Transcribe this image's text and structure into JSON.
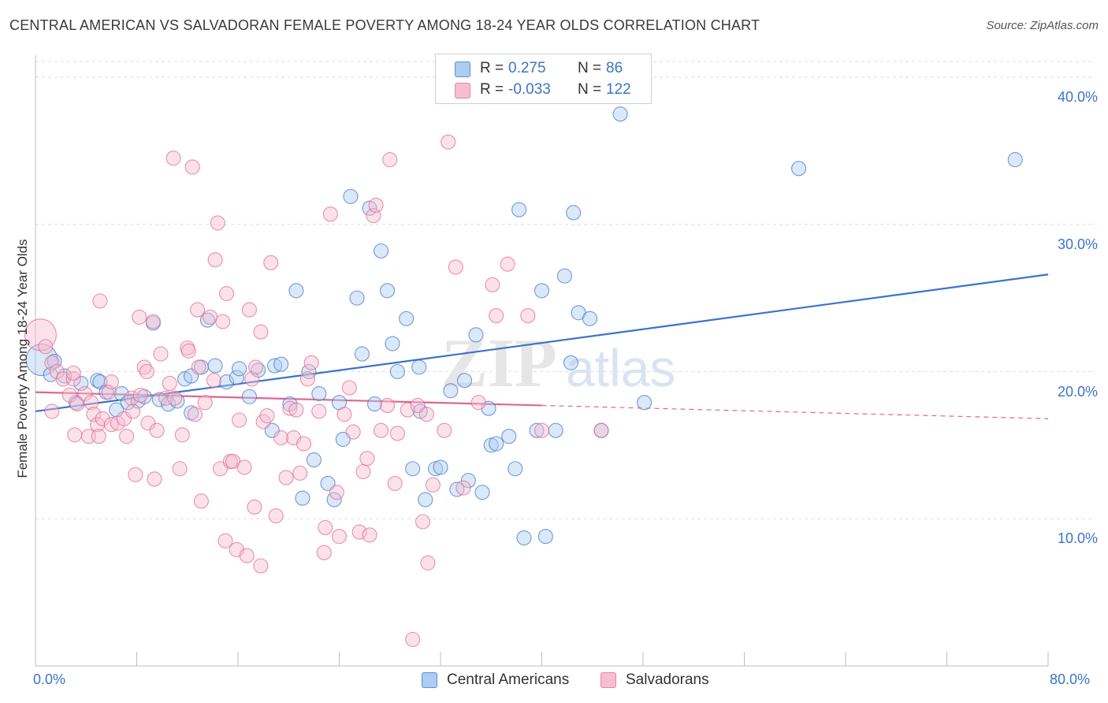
{
  "title": "CENTRAL AMERICAN VS SALVADORAN FEMALE POVERTY AMONG 18-24 YEAR OLDS CORRELATION CHART",
  "source": "Source: ZipAtlas.com",
  "watermark": {
    "zip": "ZIP",
    "atlas": "atlas"
  },
  "legend": {
    "r_label": "R =",
    "n_label": "N =",
    "rows": [
      {
        "r": "0.275",
        "n": "86",
        "fill": "#aecbf0",
        "stroke": "#5b8fd6"
      },
      {
        "r": "-0.033",
        "n": "122",
        "fill": "#f7bdd0",
        "stroke": "#e586a6"
      }
    ]
  },
  "chart_data": {
    "type": "scatter",
    "xlabel": "",
    "ylabel": "Female Poverty Among 18-24 Year Olds",
    "xlim": [
      0,
      80
    ],
    "ylim": [
      0,
      41.5
    ],
    "x_tick_labels": [
      "0.0%",
      "80.0%"
    ],
    "y_ticks": [
      10,
      20,
      30,
      40
    ],
    "y_tick_labels": [
      "10.0%",
      "20.0%",
      "30.0%",
      "40.0%"
    ],
    "grid": true,
    "series": [
      {
        "name": "Central Americans",
        "color": "#3b74c9",
        "fill": "#aecbf0",
        "trend": {
          "x0": 0,
          "y0": 17.3,
          "x1": 80,
          "y1": 26.6,
          "dashed_from": null
        },
        "points": [
          [
            0.5,
            20.8
          ],
          [
            1.5,
            20.7
          ],
          [
            1.2,
            19.8
          ],
          [
            2.3,
            19.7
          ],
          [
            3.2,
            17.9
          ],
          [
            3.6,
            19.2
          ],
          [
            4.9,
            19.4
          ],
          [
            5.1,
            19.3
          ],
          [
            5.6,
            18.6
          ],
          [
            6.4,
            17.4
          ],
          [
            6.8,
            18.5
          ],
          [
            7.3,
            17.9
          ],
          [
            8.1,
            18.0
          ],
          [
            8.6,
            18.3
          ],
          [
            9.3,
            23.3
          ],
          [
            9.8,
            18.1
          ],
          [
            10.5,
            17.8
          ],
          [
            11.2,
            18.0
          ],
          [
            11.8,
            19.5
          ],
          [
            12.3,
            17.2
          ],
          [
            12.3,
            19.7
          ],
          [
            13.1,
            20.3
          ],
          [
            13.6,
            23.5
          ],
          [
            14.2,
            20.4
          ],
          [
            15.1,
            19.3
          ],
          [
            15.9,
            19.6
          ],
          [
            16.1,
            20.2
          ],
          [
            16.9,
            18.3
          ],
          [
            17.6,
            20.1
          ],
          [
            18.7,
            16.0
          ],
          [
            18.9,
            20.4
          ],
          [
            19.4,
            20.5
          ],
          [
            20.1,
            17.8
          ],
          [
            20.6,
            25.5
          ],
          [
            21.1,
            11.4
          ],
          [
            21.6,
            20.0
          ],
          [
            22.0,
            14.0
          ],
          [
            22.4,
            18.5
          ],
          [
            23.1,
            12.4
          ],
          [
            23.6,
            11.3
          ],
          [
            24.0,
            17.9
          ],
          [
            24.3,
            15.4
          ],
          [
            24.9,
            31.9
          ],
          [
            25.4,
            25.0
          ],
          [
            25.8,
            21.2
          ],
          [
            26.4,
            31.1
          ],
          [
            26.8,
            17.8
          ],
          [
            27.3,
            28.2
          ],
          [
            27.8,
            25.5
          ],
          [
            28.2,
            21.9
          ],
          [
            28.6,
            20.0
          ],
          [
            29.3,
            23.6
          ],
          [
            29.8,
            13.4
          ],
          [
            30.3,
            20.3
          ],
          [
            30.4,
            17.3
          ],
          [
            30.8,
            11.3
          ],
          [
            31.6,
            13.4
          ],
          [
            32.0,
            13.5
          ],
          [
            32.8,
            18.7
          ],
          [
            33.3,
            12.0
          ],
          [
            33.9,
            19.4
          ],
          [
            34.2,
            12.6
          ],
          [
            34.8,
            22.5
          ],
          [
            35.3,
            11.8
          ],
          [
            35.8,
            17.5
          ],
          [
            36.0,
            15.0
          ],
          [
            36.4,
            15.1
          ],
          [
            37.4,
            15.6
          ],
          [
            37.9,
            13.4
          ],
          [
            38.2,
            31.0
          ],
          [
            38.6,
            8.7
          ],
          [
            39.6,
            16.0
          ],
          [
            40.0,
            25.5
          ],
          [
            40.3,
            8.8
          ],
          [
            41.1,
            16.0
          ],
          [
            41.8,
            26.5
          ],
          [
            42.3,
            20.6
          ],
          [
            42.5,
            30.8
          ],
          [
            42.9,
            24.0
          ],
          [
            43.8,
            23.6
          ],
          [
            44.7,
            16.0
          ],
          [
            45.6,
            40.0
          ],
          [
            46.2,
            37.5
          ],
          [
            48.1,
            17.9
          ],
          [
            60.3,
            33.8
          ],
          [
            77.4,
            34.4
          ]
        ]
      },
      {
        "name": "Salvadorans",
        "color": "#e0668f",
        "fill": "#f7bdd0",
        "trend": {
          "x0": 0,
          "y0": 18.6,
          "x1": 80,
          "y1": 16.8,
          "dashed_from": 40
        },
        "points": [
          [
            0.4,
            22.5
          ],
          [
            0.8,
            21.7
          ],
          [
            1.3,
            20.6
          ],
          [
            1.3,
            17.3
          ],
          [
            1.7,
            20.0
          ],
          [
            2.2,
            19.5
          ],
          [
            2.7,
            18.4
          ],
          [
            3.0,
            19.5
          ],
          [
            3.0,
            19.9
          ],
          [
            3.1,
            15.7
          ],
          [
            3.3,
            17.8
          ],
          [
            3.9,
            18.5
          ],
          [
            4.2,
            15.6
          ],
          [
            4.4,
            17.9
          ],
          [
            4.6,
            17.1
          ],
          [
            4.9,
            16.4
          ],
          [
            5.0,
            15.6
          ],
          [
            5.1,
            24.8
          ],
          [
            5.3,
            16.8
          ],
          [
            5.8,
            18.6
          ],
          [
            6.0,
            16.4
          ],
          [
            6.0,
            19.3
          ],
          [
            6.5,
            16.5
          ],
          [
            7.0,
            16.8
          ],
          [
            7.2,
            15.6
          ],
          [
            7.6,
            18.2
          ],
          [
            7.7,
            17.3
          ],
          [
            7.9,
            13.0
          ],
          [
            8.2,
            23.7
          ],
          [
            8.3,
            18.4
          ],
          [
            8.6,
            20.3
          ],
          [
            8.8,
            20.0
          ],
          [
            8.9,
            16.5
          ],
          [
            9.3,
            23.4
          ],
          [
            9.4,
            12.7
          ],
          [
            9.6,
            16.0
          ],
          [
            9.9,
            21.2
          ],
          [
            10.3,
            18.2
          ],
          [
            10.6,
            19.2
          ],
          [
            10.9,
            34.5
          ],
          [
            11.0,
            18.2
          ],
          [
            11.4,
            13.4
          ],
          [
            11.6,
            15.7
          ],
          [
            12.0,
            21.6
          ],
          [
            12.1,
            21.4
          ],
          [
            12.4,
            33.9
          ],
          [
            12.6,
            17.1
          ],
          [
            12.8,
            24.2
          ],
          [
            12.9,
            20.3
          ],
          [
            13.1,
            11.2
          ],
          [
            13.4,
            17.9
          ],
          [
            13.8,
            23.7
          ],
          [
            14.1,
            19.4
          ],
          [
            14.2,
            27.6
          ],
          [
            14.4,
            30.1
          ],
          [
            14.6,
            13.4
          ],
          [
            14.8,
            23.4
          ],
          [
            15.0,
            8.5
          ],
          [
            15.1,
            25.3
          ],
          [
            15.4,
            13.9
          ],
          [
            15.6,
            13.9
          ],
          [
            15.9,
            7.9
          ],
          [
            16.1,
            16.7
          ],
          [
            16.5,
            13.5
          ],
          [
            16.7,
            7.5
          ],
          [
            16.9,
            24.2
          ],
          [
            17.1,
            19.5
          ],
          [
            17.3,
            10.8
          ],
          [
            17.4,
            20.3
          ],
          [
            17.8,
            22.7
          ],
          [
            17.8,
            6.8
          ],
          [
            18.0,
            16.6
          ],
          [
            18.3,
            17.0
          ],
          [
            18.6,
            27.4
          ],
          [
            19.0,
            10.2
          ],
          [
            19.4,
            15.5
          ],
          [
            19.8,
            12.8
          ],
          [
            20.1,
            17.5
          ],
          [
            20.4,
            15.5
          ],
          [
            20.6,
            17.4
          ],
          [
            20.9,
            13.1
          ],
          [
            21.2,
            15.1
          ],
          [
            21.5,
            19.5
          ],
          [
            21.8,
            20.6
          ],
          [
            22.4,
            17.3
          ],
          [
            22.8,
            7.7
          ],
          [
            22.9,
            9.4
          ],
          [
            23.3,
            30.7
          ],
          [
            23.8,
            11.8
          ],
          [
            24.0,
            8.8
          ],
          [
            24.4,
            17.1
          ],
          [
            24.8,
            18.9
          ],
          [
            25.1,
            15.9
          ],
          [
            25.6,
            9.1
          ],
          [
            25.9,
            13.2
          ],
          [
            26.2,
            14.1
          ],
          [
            26.4,
            8.9
          ],
          [
            26.7,
            30.6
          ],
          [
            26.9,
            31.3
          ],
          [
            27.3,
            16.0
          ],
          [
            27.8,
            17.7
          ],
          [
            28.0,
            34.4
          ],
          [
            28.4,
            12.4
          ],
          [
            28.6,
            15.8
          ],
          [
            29.4,
            17.4
          ],
          [
            29.8,
            1.8
          ],
          [
            30.2,
            17.7
          ],
          [
            30.6,
            9.8
          ],
          [
            30.9,
            17.1
          ],
          [
            31.0,
            7.0
          ],
          [
            31.4,
            12.3
          ],
          [
            32.3,
            16.0
          ],
          [
            32.6,
            35.6
          ],
          [
            33.2,
            27.1
          ],
          [
            33.8,
            12.1
          ],
          [
            35.0,
            17.9
          ],
          [
            36.1,
            25.9
          ],
          [
            36.4,
            23.8
          ],
          [
            37.3,
            27.3
          ],
          [
            38.9,
            23.8
          ],
          [
            40.0,
            16.0
          ],
          [
            44.7,
            16.0
          ]
        ]
      }
    ]
  }
}
